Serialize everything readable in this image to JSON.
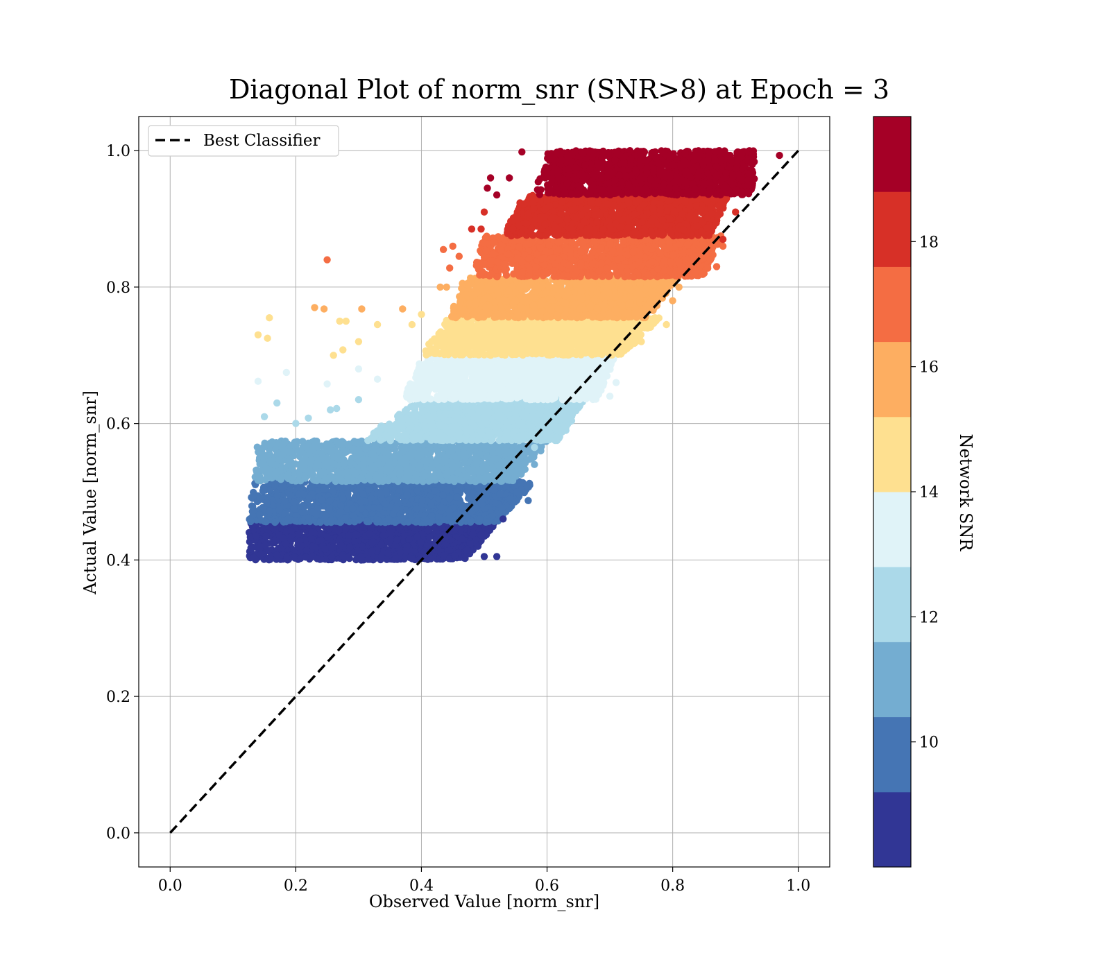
{
  "chart_data": {
    "type": "scatter",
    "title": "Diagonal Plot of norm_snr (SNR>8) at Epoch = 3",
    "xlabel": "Observed Value [norm_snr]",
    "ylabel": "Actual Value [norm_snr]",
    "xlim": [
      -0.05,
      1.05
    ],
    "ylim": [
      -0.05,
      1.05
    ],
    "xticks": [
      "0.0",
      "0.2",
      "0.4",
      "0.6",
      "0.8",
      "1.0"
    ],
    "yticks": [
      "0.0",
      "0.2",
      "0.4",
      "0.6",
      "0.8",
      "1.0"
    ],
    "grid": true,
    "legend": {
      "placement": "upper-left",
      "entries": [
        "Best Classifier"
      ]
    },
    "reference_line": {
      "name": "Best Classifier",
      "style": "dashed",
      "color": "#000000",
      "x": [
        0,
        1
      ],
      "y": [
        0,
        1
      ]
    },
    "colorbar": {
      "label": "Network SNR",
      "range": [
        8,
        20
      ],
      "ticks": [
        "10",
        "12",
        "14",
        "16",
        "18"
      ],
      "colors": [
        "#313695",
        "#4575b4",
        "#74add1",
        "#abd9e9",
        "#e0f3f8",
        "#fee090",
        "#fdae61",
        "#f46d43",
        "#d73027",
        "#a50026"
      ]
    },
    "snr_bands": [
      {
        "snr": 8.6,
        "color": "#313695",
        "y": [
          0.4,
          0.455
        ],
        "x_min": [
          0.125,
          0.125
        ],
        "x_max": [
          0.47,
          0.52
        ]
      },
      {
        "snr": 9.8,
        "color": "#4575b4",
        "y": [
          0.455,
          0.515
        ],
        "x_min": [
          0.125,
          0.13
        ],
        "x_max": [
          0.52,
          0.58
        ]
      },
      {
        "snr": 11.0,
        "color": "#74add1",
        "y": [
          0.515,
          0.575
        ],
        "x_min": [
          0.13,
          0.14
        ],
        "x_max": [
          0.55,
          0.6
        ]
      },
      {
        "snr": 12.2,
        "color": "#abd9e9",
        "y": [
          0.575,
          0.635
        ],
        "x_min": [
          0.3,
          0.4
        ],
        "x_max": [
          0.62,
          0.66
        ]
      },
      {
        "snr": 13.4,
        "color": "#e0f3f8",
        "y": [
          0.635,
          0.7
        ],
        "x_min": [
          0.37,
          0.4
        ],
        "x_max": [
          0.68,
          0.71
        ]
      },
      {
        "snr": 14.6,
        "color": "#fee090",
        "y": [
          0.7,
          0.755
        ],
        "x_min": [
          0.4,
          0.44
        ],
        "x_max": [
          0.72,
          0.78
        ]
      },
      {
        "snr": 15.8,
        "color": "#fdae61",
        "y": [
          0.755,
          0.815
        ],
        "x_min": [
          0.44,
          0.47
        ],
        "x_max": [
          0.76,
          0.81
        ]
      },
      {
        "snr": 17.0,
        "color": "#f46d43",
        "y": [
          0.815,
          0.875
        ],
        "x_min": [
          0.48,
          0.5
        ],
        "x_max": [
          0.85,
          0.88
        ]
      },
      {
        "snr": 18.2,
        "color": "#d73027",
        "y": [
          0.875,
          0.935
        ],
        "x_min": [
          0.53,
          0.56
        ],
        "x_max": [
          0.86,
          0.89
        ]
      },
      {
        "snr": 19.4,
        "color": "#a50026",
        "y": [
          0.935,
          1.0
        ],
        "x_min": [
          0.58,
          0.6
        ],
        "x_max": [
          0.93,
          0.93
        ]
      }
    ],
    "outliers": [
      [
        0.25,
        0.84,
        "#f46d43"
      ],
      [
        0.435,
        0.855,
        "#f46d43"
      ],
      [
        0.14,
        0.73,
        "#fee090"
      ],
      [
        0.155,
        0.725,
        "#fee090"
      ],
      [
        0.158,
        0.755,
        "#fee090"
      ],
      [
        0.23,
        0.77,
        "#fdae61"
      ],
      [
        0.245,
        0.768,
        "#fdae61"
      ],
      [
        0.305,
        0.768,
        "#fdae61"
      ],
      [
        0.37,
        0.768,
        "#fdae61"
      ],
      [
        0.27,
        0.75,
        "#fee090"
      ],
      [
        0.28,
        0.75,
        "#fee090"
      ],
      [
        0.33,
        0.745,
        "#fee090"
      ],
      [
        0.26,
        0.7,
        "#fee090"
      ],
      [
        0.275,
        0.708,
        "#fee090"
      ],
      [
        0.3,
        0.72,
        "#fee090"
      ],
      [
        0.14,
        0.662,
        "#e0f3f8"
      ],
      [
        0.185,
        0.675,
        "#e0f3f8"
      ],
      [
        0.25,
        0.658,
        "#e0f3f8"
      ],
      [
        0.3,
        0.68,
        "#e0f3f8"
      ],
      [
        0.33,
        0.665,
        "#e0f3f8"
      ],
      [
        0.15,
        0.61,
        "#abd9e9"
      ],
      [
        0.17,
        0.63,
        "#abd9e9"
      ],
      [
        0.2,
        0.6,
        "#abd9e9"
      ],
      [
        0.22,
        0.608,
        "#abd9e9"
      ],
      [
        0.255,
        0.62,
        "#abd9e9"
      ],
      [
        0.265,
        0.622,
        "#abd9e9"
      ],
      [
        0.3,
        0.635,
        "#abd9e9"
      ],
      [
        0.58,
        0.565,
        "#abd9e9"
      ],
      [
        0.59,
        0.575,
        "#abd9e9"
      ],
      [
        0.63,
        0.59,
        "#abd9e9"
      ],
      [
        0.64,
        0.62,
        "#abd9e9"
      ],
      [
        0.71,
        0.66,
        "#e0f3f8"
      ],
      [
        0.7,
        0.64,
        "#e0f3f8"
      ],
      [
        0.75,
        0.72,
        "#fee090"
      ],
      [
        0.76,
        0.74,
        "#fee090"
      ],
      [
        0.79,
        0.745,
        "#fee090"
      ],
      [
        0.8,
        0.78,
        "#fdae61"
      ],
      [
        0.81,
        0.8,
        "#fdae61"
      ],
      [
        0.85,
        0.82,
        "#f46d43"
      ],
      [
        0.86,
        0.84,
        "#f46d43"
      ],
      [
        0.88,
        0.86,
        "#f46d43"
      ],
      [
        0.87,
        0.83,
        "#f46d43"
      ],
      [
        0.88,
        0.87,
        "#d73027"
      ],
      [
        0.9,
        0.91,
        "#d73027"
      ],
      [
        0.92,
        0.95,
        "#a50026"
      ],
      [
        0.91,
        0.94,
        "#a50026"
      ],
      [
        0.97,
        0.993,
        "#a50026"
      ],
      [
        0.52,
        0.405,
        "#313695"
      ],
      [
        0.49,
        0.42,
        "#313695"
      ],
      [
        0.5,
        0.405,
        "#313695"
      ],
      [
        0.53,
        0.46,
        "#313695"
      ],
      [
        0.57,
        0.487,
        "#4575b4"
      ],
      [
        0.58,
        0.54,
        "#74add1"
      ],
      [
        0.59,
        0.56,
        "#74add1"
      ],
      [
        0.51,
        0.96,
        "#a50026"
      ],
      [
        0.52,
        0.935,
        "#a50026"
      ],
      [
        0.54,
        0.96,
        "#a50026"
      ],
      [
        0.505,
        0.945,
        "#a50026"
      ],
      [
        0.56,
        0.998,
        "#a50026"
      ],
      [
        0.5,
        0.91,
        "#d73027"
      ],
      [
        0.48,
        0.885,
        "#d73027"
      ],
      [
        0.495,
        0.885,
        "#d73027"
      ],
      [
        0.45,
        0.86,
        "#f46d43"
      ],
      [
        0.445,
        0.828,
        "#f46d43"
      ],
      [
        0.46,
        0.845,
        "#f46d43"
      ],
      [
        0.43,
        0.8,
        "#fdae61"
      ],
      [
        0.44,
        0.8,
        "#fdae61"
      ],
      [
        0.4,
        0.76,
        "#fee090"
      ],
      [
        0.385,
        0.745,
        "#fee090"
      ]
    ]
  }
}
